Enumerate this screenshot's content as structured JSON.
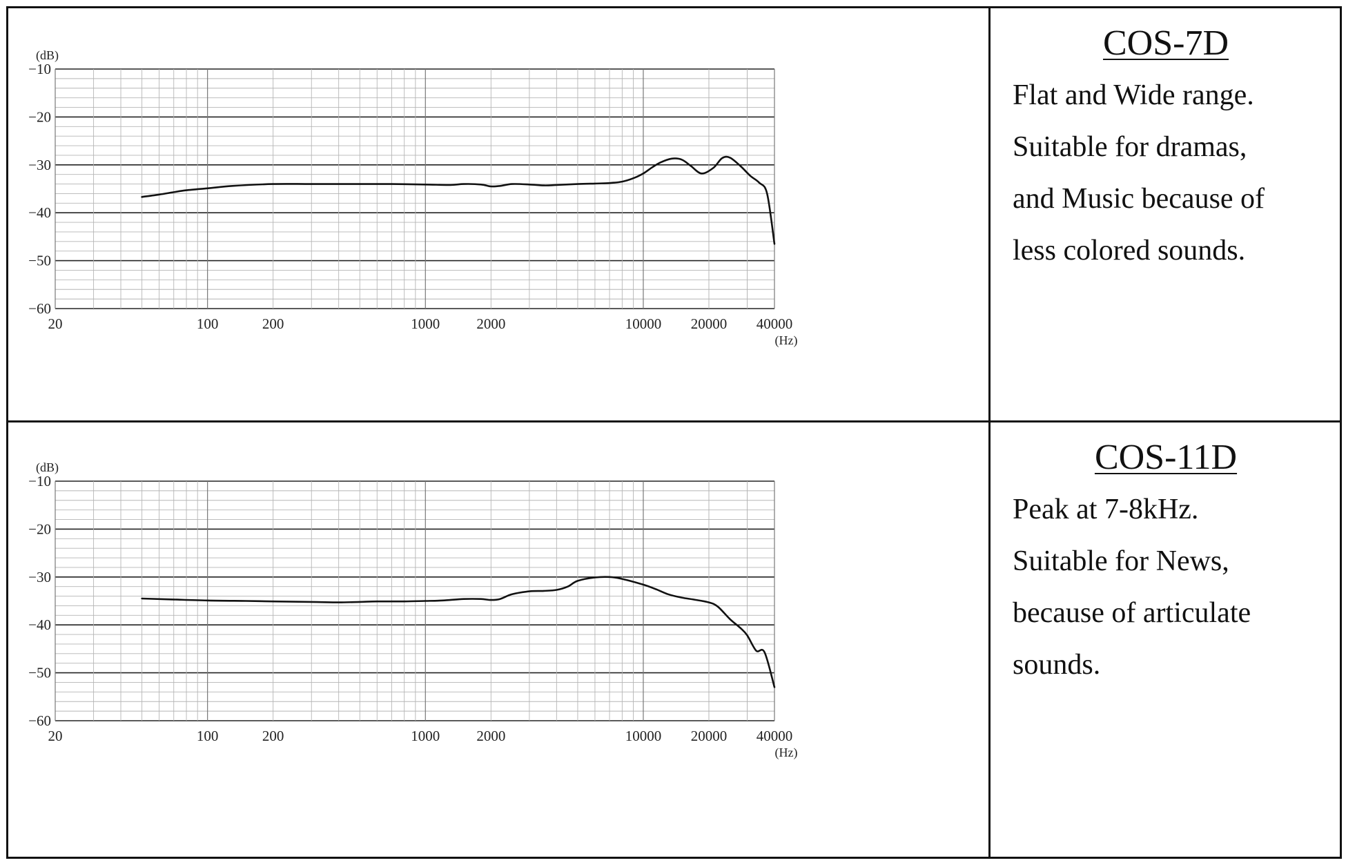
{
  "panels": [
    {
      "title": "COS-7D",
      "description": [
        "Flat and Wide range.",
        "Suitable for dramas,",
        "and Music because of",
        "less colored sounds."
      ]
    },
    {
      "title": "COS-11D",
      "description": [
        "Peak at 7-8kHz.",
        "Suitable for News,",
        "because of articulate",
        "sounds."
      ]
    }
  ],
  "chart_data": [
    {
      "type": "line",
      "title": "",
      "xlabel": "(Hz)",
      "ylabel": "(dB)",
      "x_scale": "log",
      "xlim": [
        20,
        40000
      ],
      "ylim": [
        -60,
        -10
      ],
      "x_tick_labels": [
        {
          "value": 20,
          "label": "20"
        },
        {
          "value": 100,
          "label": "100"
        },
        {
          "value": 200,
          "label": "200"
        },
        {
          "value": 1000,
          "label": "1000"
        },
        {
          "value": 2000,
          "label": "2000"
        },
        {
          "value": 10000,
          "label": "10000"
        },
        {
          "value": 20000,
          "label": "20000"
        },
        {
          "value": 40000,
          "label": "40000"
        }
      ],
      "y_tick_labels": [
        {
          "value": -10,
          "label": "−10"
        },
        {
          "value": -20,
          "label": "−20"
        },
        {
          "value": -30,
          "label": "−30"
        },
        {
          "value": -40,
          "label": "−40"
        },
        {
          "value": -50,
          "label": "−50"
        },
        {
          "value": -60,
          "label": "−60"
        }
      ],
      "grid": true,
      "legend": "none",
      "line_color": "#111111",
      "series": [
        {
          "x": [
            50,
            60,
            70,
            80,
            100,
            130,
            200,
            300,
            500,
            700,
            1000,
            1300,
            1500,
            1800,
            2000,
            2200,
            2500,
            3000,
            3500,
            4000,
            5000,
            6000,
            7000,
            8000,
            9000,
            10000,
            11000,
            12000,
            13500,
            15000,
            16500,
            18500,
            21000,
            23000,
            25000,
            28000,
            31000,
            34000,
            37000,
            40000
          ],
          "y": [
            -36.7,
            -36.2,
            -35.7,
            -35.3,
            -34.9,
            -34.4,
            -34.0,
            -34.0,
            -34.0,
            -34.0,
            -34.1,
            -34.2,
            -34.0,
            -34.1,
            -34.5,
            -34.4,
            -34.0,
            -34.1,
            -34.3,
            -34.2,
            -34.0,
            -33.9,
            -33.8,
            -33.5,
            -32.8,
            -31.8,
            -30.5,
            -29.5,
            -28.7,
            -28.9,
            -30.2,
            -31.8,
            -30.6,
            -28.6,
            -28.5,
            -30.3,
            -32.3,
            -33.7,
            -36.0,
            -46.5
          ]
        }
      ]
    },
    {
      "type": "line",
      "title": "",
      "xlabel": "(Hz)",
      "ylabel": "(dB)",
      "x_scale": "log",
      "xlim": [
        20,
        40000
      ],
      "ylim": [
        -60,
        -10
      ],
      "x_tick_labels": [
        {
          "value": 20,
          "label": "20"
        },
        {
          "value": 100,
          "label": "100"
        },
        {
          "value": 200,
          "label": "200"
        },
        {
          "value": 1000,
          "label": "1000"
        },
        {
          "value": 2000,
          "label": "2000"
        },
        {
          "value": 10000,
          "label": "10000"
        },
        {
          "value": 20000,
          "label": "20000"
        },
        {
          "value": 40000,
          "label": "40000"
        }
      ],
      "y_tick_labels": [
        {
          "value": -10,
          "label": "−10"
        },
        {
          "value": -20,
          "label": "−20"
        },
        {
          "value": -30,
          "label": "−30"
        },
        {
          "value": -40,
          "label": "−40"
        },
        {
          "value": -50,
          "label": "−50"
        },
        {
          "value": -60,
          "label": "−60"
        }
      ],
      "grid": true,
      "legend": "none",
      "line_color": "#111111",
      "series": [
        {
          "x": [
            50,
            70,
            100,
            150,
            200,
            300,
            400,
            500,
            600,
            800,
            1000,
            1200,
            1500,
            1800,
            2000,
            2200,
            2500,
            3000,
            3500,
            4000,
            4500,
            5000,
            6000,
            7000,
            8000,
            10000,
            11500,
            13000,
            15000,
            17000,
            20000,
            22000,
            25000,
            28000,
            30000,
            33000,
            36000,
            40000
          ],
          "y": [
            -34.5,
            -34.7,
            -34.9,
            -35.0,
            -35.1,
            -35.2,
            -35.3,
            -35.2,
            -35.1,
            -35.1,
            -35.0,
            -34.9,
            -34.6,
            -34.6,
            -34.8,
            -34.6,
            -33.6,
            -33.0,
            -32.9,
            -32.7,
            -32.0,
            -30.8,
            -30.1,
            -30.0,
            -30.4,
            -31.6,
            -32.6,
            -33.6,
            -34.3,
            -34.7,
            -35.3,
            -36.2,
            -38.8,
            -40.7,
            -42.2,
            -45.4,
            -45.7,
            -53.0
          ]
        }
      ]
    }
  ]
}
